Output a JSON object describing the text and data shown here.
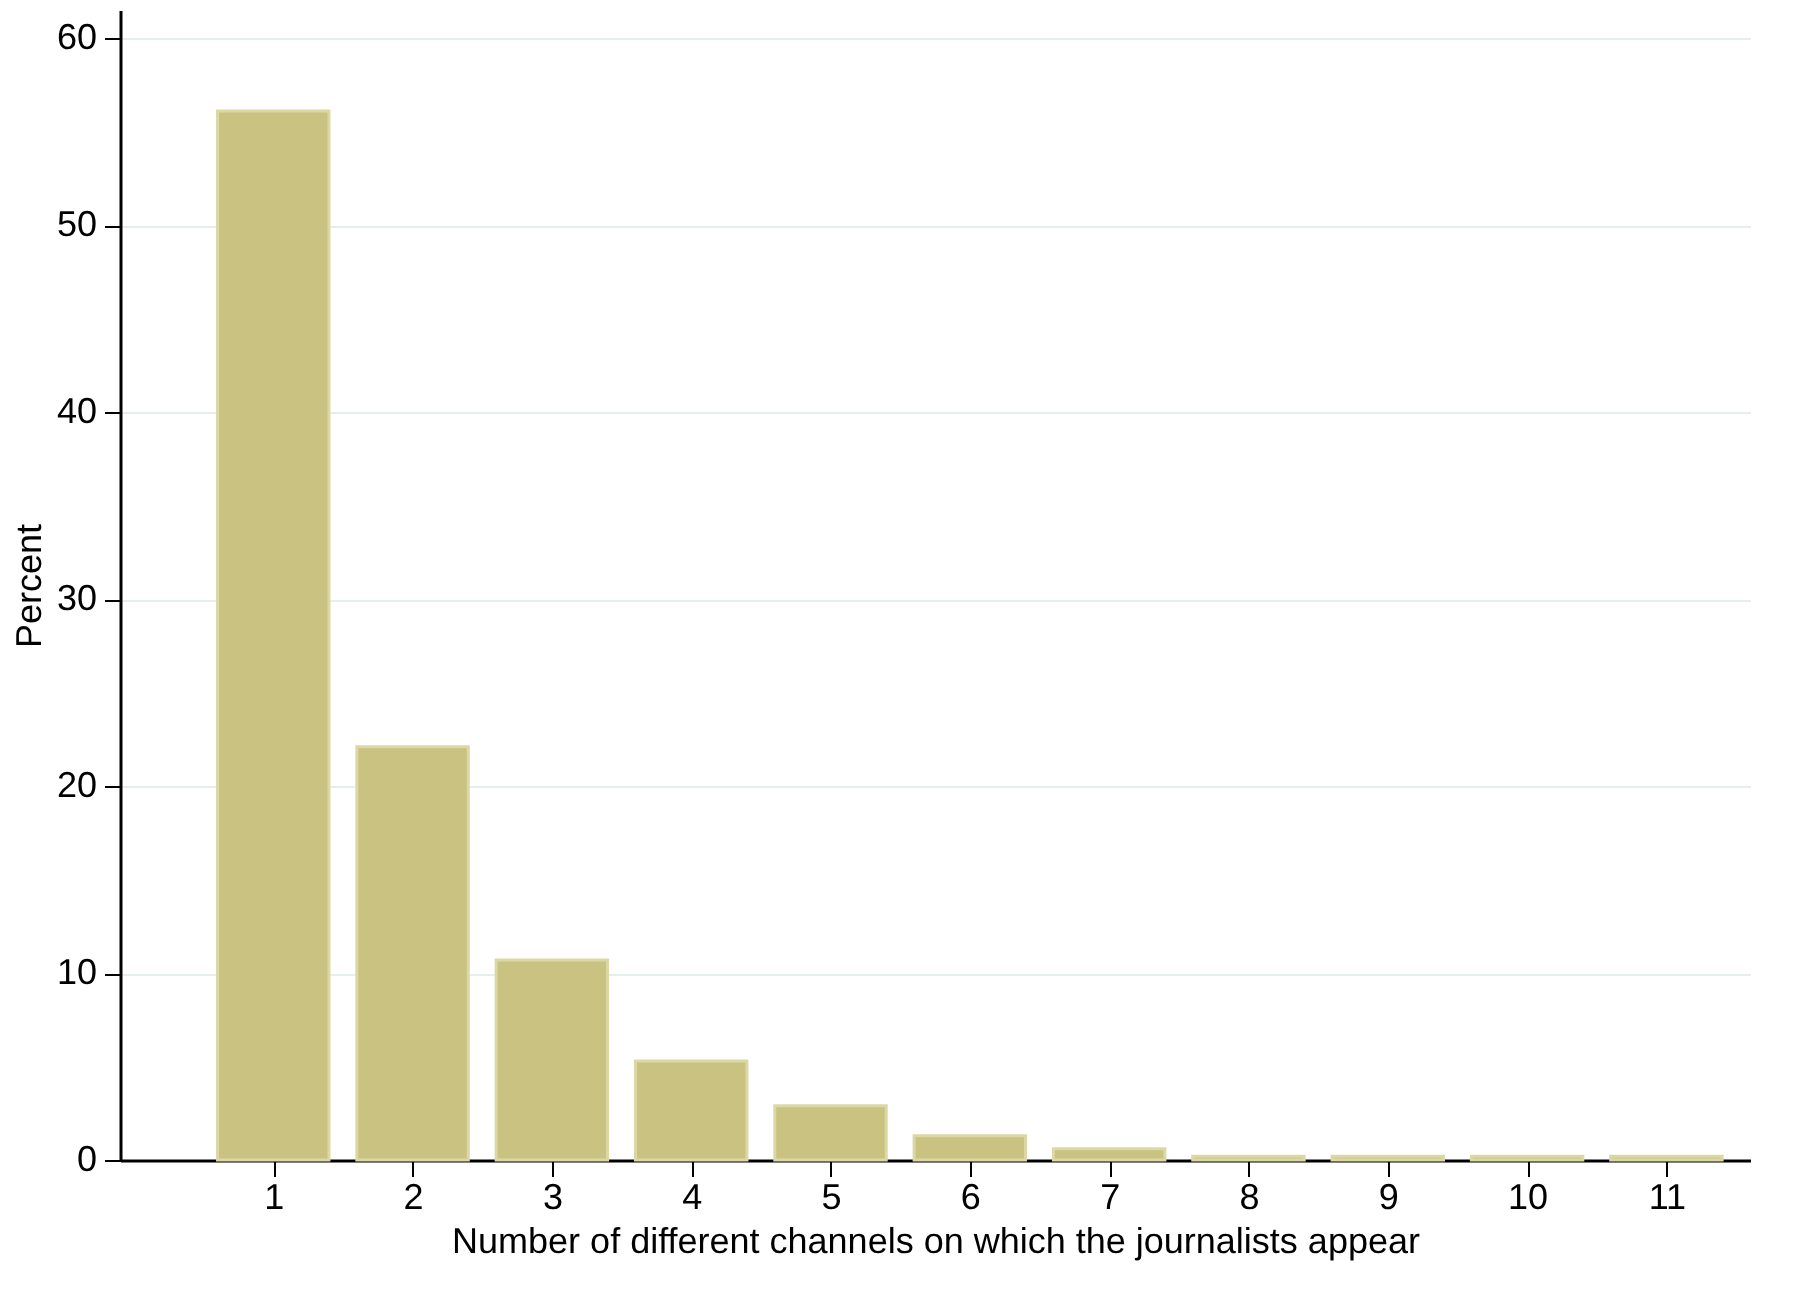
{
  "chart_data": {
    "type": "bar",
    "xlabel": "Number of different channels on which the journalists appear",
    "ylabel": "Percent",
    "x": [
      1,
      2,
      3,
      4,
      5,
      6,
      7,
      8,
      9,
      10,
      11
    ],
    "values": [
      56.1,
      22.1,
      10.7,
      5.3,
      2.9,
      1.3,
      0.6,
      0.2,
      0.2,
      0.2,
      0.2
    ],
    "color": "#c9c281",
    "xlim": [
      -0.1,
      11.6
    ],
    "xticks": [
      1,
      2,
      3,
      4,
      5,
      6,
      7,
      8,
      9,
      10,
      11
    ],
    "ylim": [
      0,
      61.5
    ],
    "yticks": [
      0,
      10,
      20,
      30,
      40,
      50,
      60
    ],
    "grid": "y"
  }
}
